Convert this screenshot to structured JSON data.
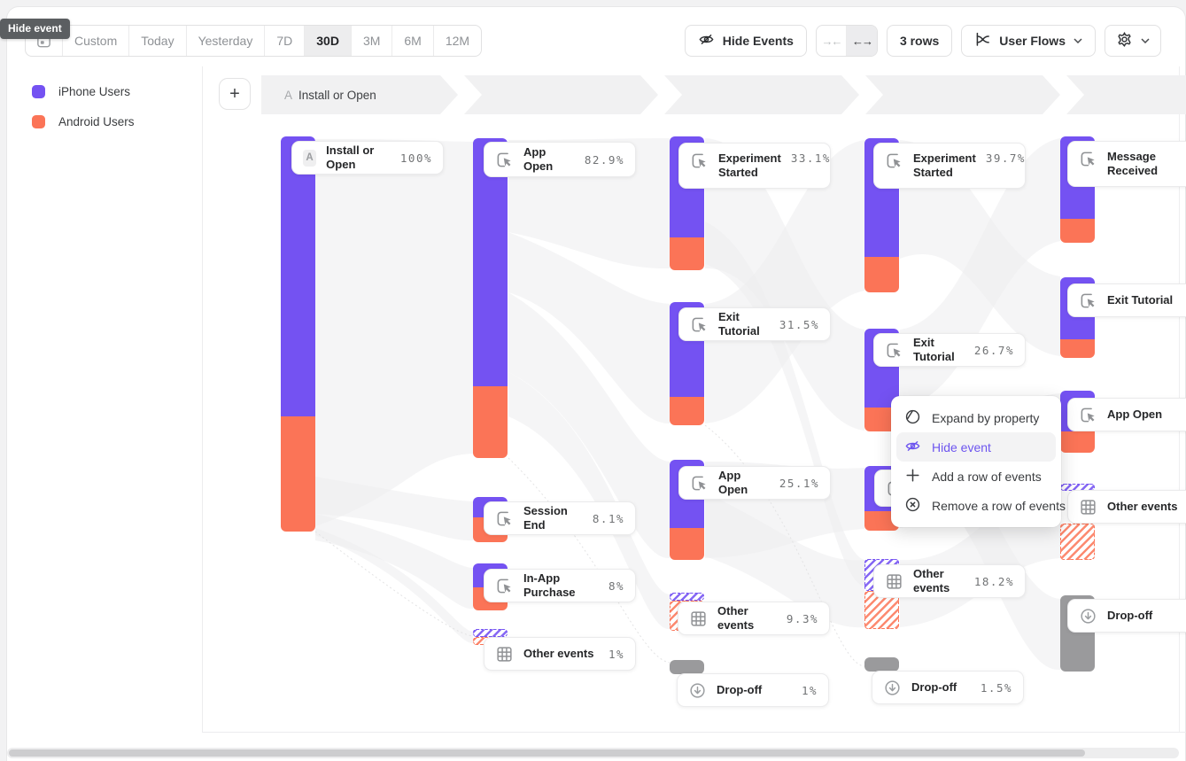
{
  "tooltip": {
    "text": "Hide event"
  },
  "toolbar": {
    "date_ranges": [
      "Custom",
      "Today",
      "Yesterday",
      "7D",
      "30D",
      "3M",
      "6M",
      "12M"
    ],
    "selected_range": "30D",
    "hide_events_label": "Hide Events",
    "rows_label": "3 rows",
    "view_label": "User Flows"
  },
  "legend": [
    {
      "label": "iPhone Users",
      "color": "#7452F2"
    },
    {
      "label": "Android Users",
      "color": "#FB7457"
    }
  ],
  "breadcrumb": {
    "step_letter": "A",
    "label": "Install or Open"
  },
  "context_menu": {
    "items": [
      {
        "label": "Expand by property",
        "icon": "expand-by-property-icon",
        "active": false
      },
      {
        "label": "Hide event",
        "icon": "hide-event-icon",
        "active": true
      },
      {
        "label": "Add a row of events",
        "icon": "plus-icon",
        "active": false
      },
      {
        "label": "Remove a row of events",
        "icon": "remove-circle-icon",
        "active": false
      }
    ]
  },
  "colors": {
    "iphone_users": "#7452F2",
    "android_users": "#FB7457",
    "dropoff": "#9A9A9C",
    "menu_active": "#6D55EF"
  },
  "chart_data": {
    "type": "sankey",
    "legend_position": "top-left",
    "series": [
      "iPhone Users",
      "Android Users"
    ],
    "columns": [
      [
        {
          "label": "Install or Open",
          "value": "100%",
          "kind": "first"
        }
      ],
      [
        {
          "label": "App Open",
          "value": "82.9%",
          "kind": "event"
        },
        {
          "label": "Session End",
          "value": "8.1%",
          "kind": "event"
        },
        {
          "label": "In-App Purchase",
          "value": "8%",
          "kind": "event"
        },
        {
          "label": "Other events",
          "value": "1%",
          "kind": "other"
        }
      ],
      [
        {
          "label": "Experiment Started",
          "value": "33.1%",
          "kind": "event"
        },
        {
          "label": "Exit Tutorial",
          "value": "31.5%",
          "kind": "event"
        },
        {
          "label": "App Open",
          "value": "25.1%",
          "kind": "event"
        },
        {
          "label": "Other events",
          "value": "9.3%",
          "kind": "other"
        },
        {
          "label": "Drop-off",
          "value": "1%",
          "kind": "dropoff"
        }
      ],
      [
        {
          "label": "Experiment Started",
          "value": "39.7%",
          "kind": "event"
        },
        {
          "label": "Exit Tutorial",
          "value": "26.7%",
          "kind": "event"
        },
        {
          "label": "",
          "value": "",
          "kind": "event"
        },
        {
          "label": "Other events",
          "value": "18.2%",
          "kind": "other"
        },
        {
          "label": "Drop-off",
          "value": "1.5%",
          "kind": "dropoff"
        }
      ],
      [
        {
          "label": "Message Received",
          "value": "",
          "kind": "event"
        },
        {
          "label": "Exit Tutorial",
          "value": "",
          "kind": "event"
        },
        {
          "label": "App Open",
          "value": "",
          "kind": "event"
        },
        {
          "label": "Other events",
          "value": "",
          "kind": "other"
        },
        {
          "label": "Drop-off",
          "value": "",
          "kind": "dropoff"
        }
      ]
    ]
  }
}
